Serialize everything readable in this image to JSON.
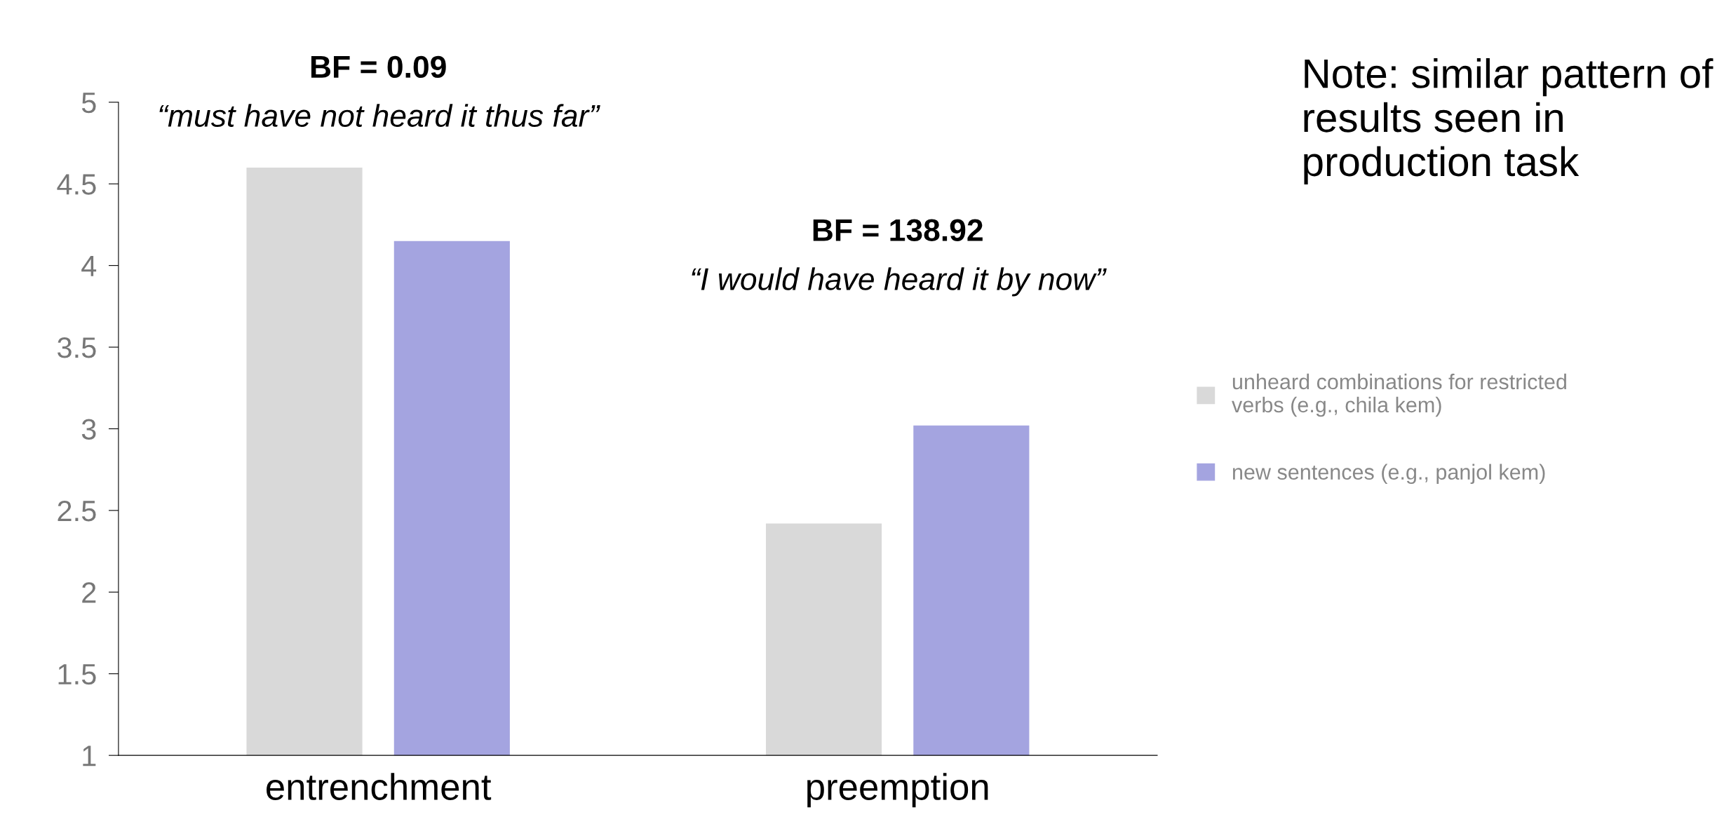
{
  "chart_data": {
    "type": "bar",
    "categories": [
      "entrenchment",
      "preemption"
    ],
    "series": [
      {
        "name": "unheard combinations for restricted verbs (e.g., chila kem)",
        "color": "#d9d9d9",
        "values": [
          4.6,
          2.42
        ]
      },
      {
        "name": "new sentences (e.g., panjol kem)",
        "color": "#a4a4e0",
        "values": [
          4.15,
          3.02
        ]
      }
    ],
    "ylim": [
      1,
      5
    ],
    "yticks": [
      1,
      1.5,
      2,
      2.5,
      3,
      3.5,
      4,
      4.5,
      5
    ],
    "grid": false,
    "legend": "right",
    "annotations": [
      "BF = 0.09",
      "“must have not heard it thus far”",
      "BF = 138.92",
      "“I would have heard it by now”",
      "Note: similar pattern of results seen in production task"
    ]
  }
}
